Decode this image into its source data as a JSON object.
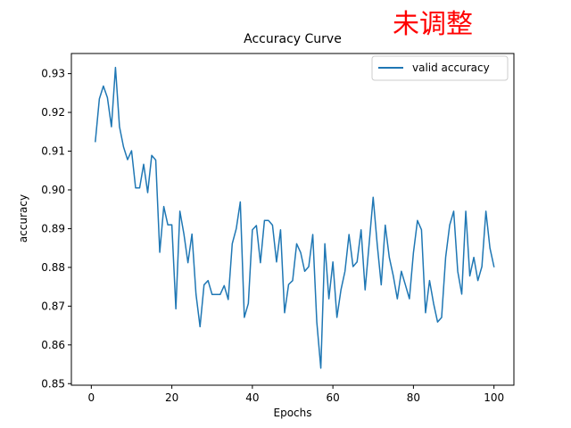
{
  "annotation": "未调整",
  "colors": {
    "series": "#1f77b4",
    "annotation": "#ff0000"
  },
  "chart_data": {
    "type": "line",
    "title": "Accuracy Curve",
    "xlabel": "Epochs",
    "ylabel": "accuracy",
    "xlim": [
      -4.95,
      104.95
    ],
    "ylim": [
      0.8496,
      0.9352
    ],
    "xticks": [
      0,
      20,
      40,
      60,
      80,
      100
    ],
    "xtick_labels": [
      "0",
      "20",
      "40",
      "60",
      "80",
      "100"
    ],
    "yticks": [
      0.85,
      0.86,
      0.87,
      0.88,
      0.89,
      0.9,
      0.91,
      0.92,
      0.93
    ],
    "ytick_labels": [
      "0.85",
      "0.86",
      "0.87",
      "0.88",
      "0.89",
      "0.90",
      "0.91",
      "0.92",
      "0.93"
    ],
    "grid": false,
    "legend": {
      "position": "top-right",
      "entries": [
        "valid accuracy"
      ]
    },
    "series": [
      {
        "name": "valid accuracy",
        "color": "#1f77b4",
        "x": [
          1,
          2,
          3,
          4,
          5,
          6,
          7,
          8,
          9,
          10,
          11,
          12,
          13,
          14,
          15,
          16,
          17,
          18,
          19,
          20,
          21,
          22,
          23,
          24,
          25,
          26,
          27,
          28,
          29,
          30,
          31,
          32,
          33,
          34,
          35,
          36,
          37,
          38,
          39,
          40,
          41,
          42,
          43,
          44,
          45,
          46,
          47,
          48,
          49,
          50,
          51,
          52,
          53,
          54,
          55,
          56,
          57,
          58,
          59,
          60,
          61,
          62,
          63,
          64,
          65,
          66,
          67,
          68,
          69,
          70,
          71,
          72,
          73,
          74,
          75,
          76,
          77,
          78,
          79,
          80,
          81,
          82,
          83,
          84,
          85,
          86,
          87,
          88,
          89,
          90,
          91,
          92,
          93,
          94,
          95,
          96,
          97,
          98,
          99,
          100
        ],
        "y": [
          0.9125,
          0.9235,
          0.9268,
          0.9238,
          0.9163,
          0.9316,
          0.9163,
          0.9111,
          0.9078,
          0.9101,
          0.9005,
          0.9005,
          0.9066,
          0.8993,
          0.9089,
          0.9077,
          0.8839,
          0.8957,
          0.891,
          0.891,
          0.8693,
          0.8945,
          0.8886,
          0.8812,
          0.8886,
          0.8731,
          0.8647,
          0.8755,
          0.8766,
          0.873,
          0.873,
          0.873,
          0.8753,
          0.8717,
          0.8861,
          0.89,
          0.8969,
          0.8671,
          0.8707,
          0.8897,
          0.8908,
          0.8812,
          0.8921,
          0.8921,
          0.8909,
          0.8814,
          0.8897,
          0.8683,
          0.8756,
          0.8766,
          0.8861,
          0.8838,
          0.879,
          0.8802,
          0.8885,
          0.8659,
          0.854,
          0.8861,
          0.8719,
          0.8814,
          0.8671,
          0.8742,
          0.879,
          0.8885,
          0.8802,
          0.8814,
          0.8897,
          0.8742,
          0.8861,
          0.8981,
          0.886,
          0.8755,
          0.8909,
          0.8826,
          0.8778,
          0.8719,
          0.879,
          0.8755,
          0.8719,
          0.8838,
          0.8921,
          0.8897,
          0.8683,
          0.8766,
          0.8707,
          0.8659,
          0.8671,
          0.8826,
          0.8909,
          0.8945,
          0.879,
          0.8731,
          0.8945,
          0.8778,
          0.8826,
          0.8766,
          0.8802,
          0.8945,
          0.885,
          0.8802
        ]
      }
    ]
  }
}
